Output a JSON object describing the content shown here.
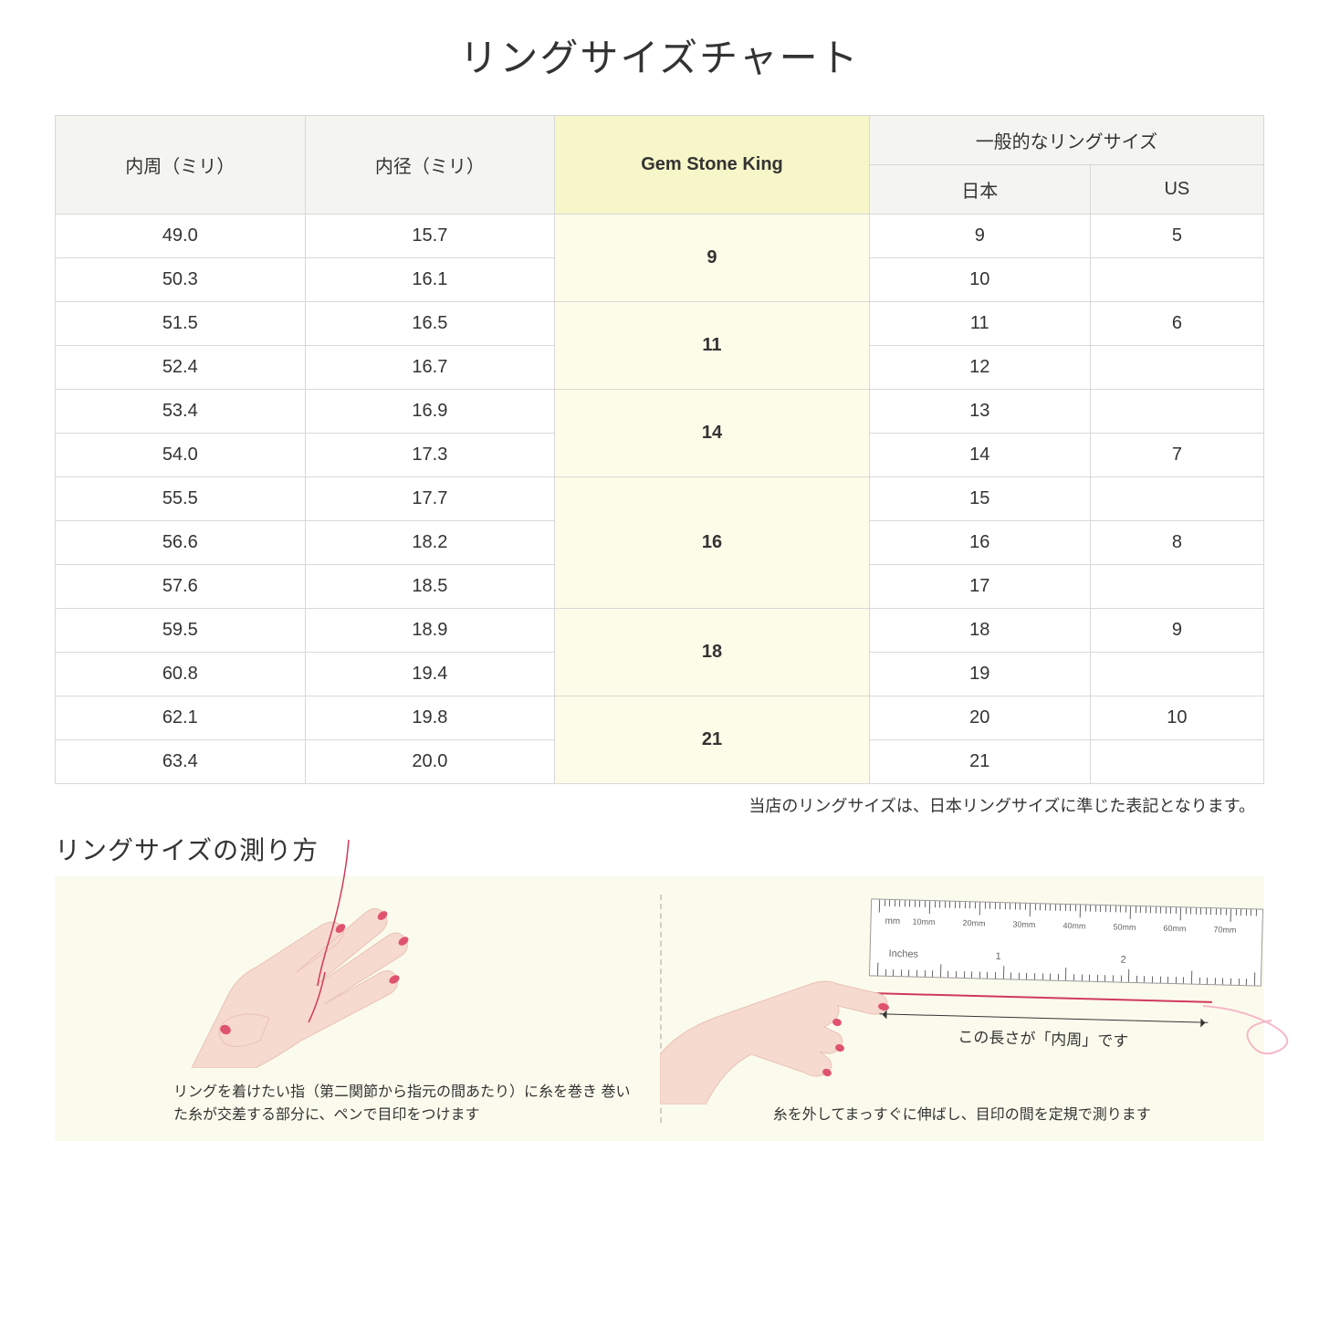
{
  "title": "リングサイズチャート",
  "headers": {
    "circumference": "内周（ミリ）",
    "diameter": "内径（ミリ）",
    "gsk": "Gem Stone King",
    "general": "一般的なリングサイズ",
    "japan": "日本",
    "us": "US"
  },
  "groups": [
    {
      "gsk": "9",
      "rows": [
        {
          "c": "49.0",
          "d": "15.7",
          "jp": "9",
          "us": "5"
        },
        {
          "c": "50.3",
          "d": "16.1",
          "jp": "10",
          "us": ""
        }
      ]
    },
    {
      "gsk": "11",
      "rows": [
        {
          "c": "51.5",
          "d": "16.5",
          "jp": "11",
          "us": "6"
        },
        {
          "c": "52.4",
          "d": "16.7",
          "jp": "12",
          "us": ""
        }
      ]
    },
    {
      "gsk": "14",
      "rows": [
        {
          "c": "53.4",
          "d": "16.9",
          "jp": "13",
          "us": ""
        },
        {
          "c": "54.0",
          "d": "17.3",
          "jp": "14",
          "us": "7"
        }
      ]
    },
    {
      "gsk": "16",
      "rows": [
        {
          "c": "55.5",
          "d": "17.7",
          "jp": "15",
          "us": ""
        },
        {
          "c": "56.6",
          "d": "18.2",
          "jp": "16",
          "us": "8"
        },
        {
          "c": "57.6",
          "d": "18.5",
          "jp": "17",
          "us": ""
        }
      ]
    },
    {
      "gsk": "18",
      "rows": [
        {
          "c": "59.5",
          "d": "18.9",
          "jp": "18",
          "us": "9"
        },
        {
          "c": "60.8",
          "d": "19.4",
          "jp": "19",
          "us": ""
        }
      ]
    },
    {
      "gsk": "21",
      "rows": [
        {
          "c": "62.1",
          "d": "19.8",
          "jp": "20",
          "us": "10"
        },
        {
          "c": "63.4",
          "d": "20.0",
          "jp": "21",
          "us": ""
        }
      ]
    }
  ],
  "note": "当店のリングサイズは、日本リングサイズに準じた表記となります。",
  "measure": {
    "title": "リングサイズの測り方",
    "left_caption": "リングを着けたい指（第二関節から指元の間あたり）に糸を巻き\n巻いた糸が交差する部分に、ペンで目印をつけます",
    "right_caption": "糸を外してまっすぐに伸ばし、目印の間を定規で測ります",
    "arrow_label": "この長さが「内周」です",
    "ruler_mm": "mm",
    "ruler_in": "Inches",
    "mm_labels": [
      "10mm",
      "20mm",
      "30mm",
      "40mm",
      "50mm",
      "60mm",
      "70mm"
    ],
    "in_labels": [
      "1",
      "2"
    ]
  },
  "colors": {
    "hdr_gray": "#f4f4f0",
    "hdr_yellow": "#f6f6c8",
    "gsk_bg": "#fcfce8",
    "panel_bg": "#fbfbed",
    "skin": "#f6d9cf",
    "nail": "#e0536f",
    "red": "#d03a5a",
    "border": "#d8d8d8"
  }
}
